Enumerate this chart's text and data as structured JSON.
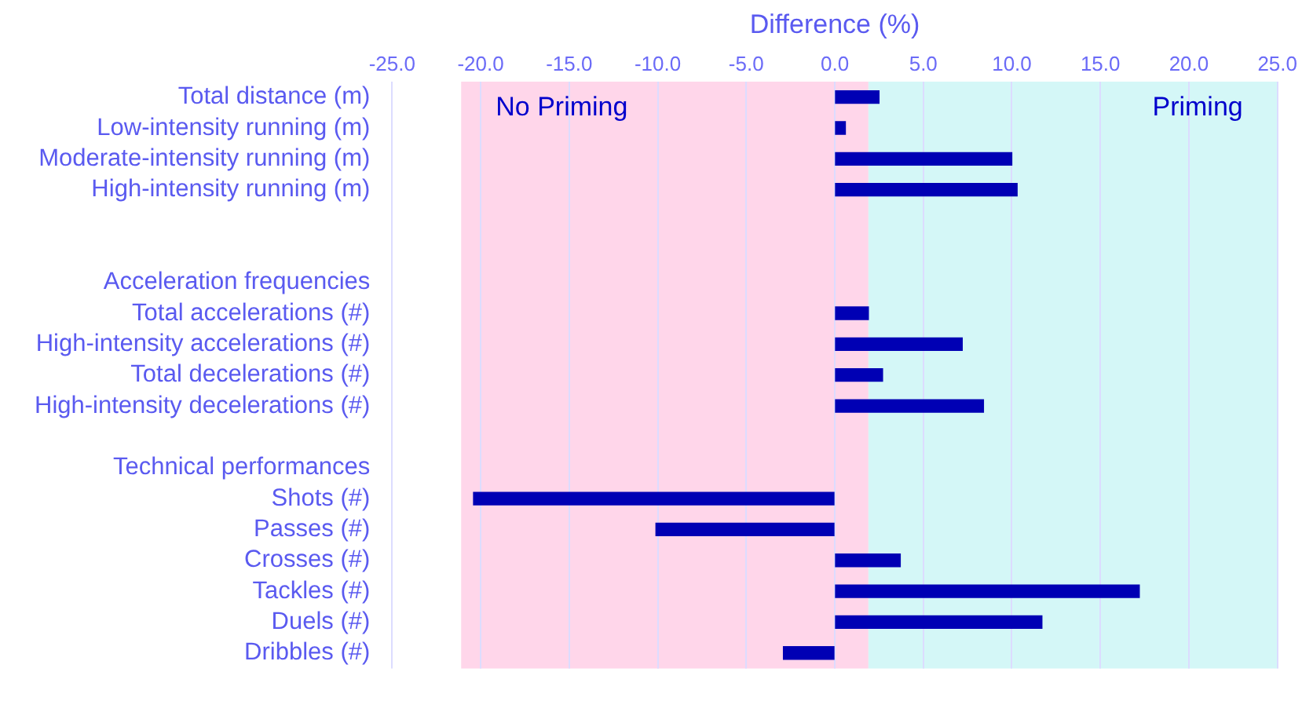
{
  "chart_data": {
    "type": "bar",
    "orientation": "horizontal",
    "xlabel": "Difference (%)",
    "categories": [
      "Total distance (m)",
      "Low-intensity running (m)",
      "Moderate-intensity running (m)",
      "High-intensity running (m)",
      null,
      null,
      "Acceleration frequencies",
      "Total accelerations (#)",
      "High-intensity accelerations (#)",
      "Total decelerations (#)",
      "High-intensity decelerations (#)",
      null,
      "Technical performances",
      "Shots (#)",
      "Passes (#)",
      "Crosses (#)",
      "Tackles (#)",
      "Duels (#)",
      "Dribbles (#)"
    ],
    "values": [
      2.5,
      0.6,
      10.0,
      10.3,
      null,
      null,
      null,
      1.9,
      7.2,
      2.7,
      8.4,
      null,
      null,
      -20.4,
      -10.1,
      3.7,
      17.2,
      11.7,
      -2.9
    ],
    "color": "#0000b4",
    "xlim": [
      -25,
      25
    ],
    "xticks": [
      {
        "value": -25,
        "label": "-25.0"
      },
      {
        "value": -20,
        "label": "-20.0"
      },
      {
        "value": -15,
        "label": "-15.0"
      },
      {
        "value": -10,
        "label": "-10.0"
      },
      {
        "value": -5,
        "label": "-5.0"
      },
      {
        "value": 0,
        "label": "0.0"
      },
      {
        "value": 5,
        "label": "5.0"
      },
      {
        "value": 10,
        "label": "10.0"
      },
      {
        "value": 15,
        "label": "15.0"
      },
      {
        "value": 20,
        "label": "20.0"
      },
      {
        "value": 25,
        "label": "25.0"
      }
    ],
    "bands": [
      {
        "axis": "x",
        "from": -21.1,
        "to": 1.9,
        "label": "No Priming",
        "color": "#ffd6ea"
      },
      {
        "axis": "x",
        "from": 1.9,
        "to": 25,
        "label": "Priming",
        "color": "#d4f7f7"
      }
    ],
    "grid": "x",
    "legend": false
  }
}
